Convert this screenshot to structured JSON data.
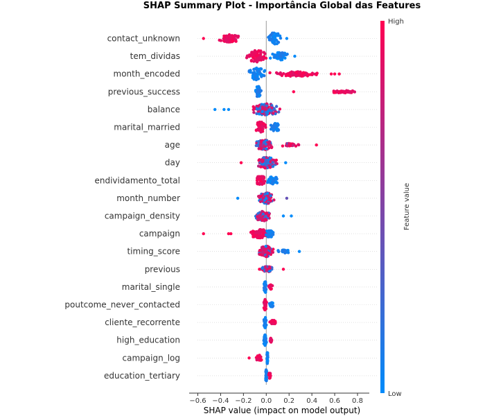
{
  "chart_data": {
    "type": "scatter",
    "subtype": "shap-beeswarm",
    "title": "SHAP Summary Plot - Importância Global das Features",
    "xlabel": "SHAP value (impact on model output)",
    "xlim": [
      -0.6,
      0.9
    ],
    "xticks": [
      -0.6,
      -0.4,
      -0.2,
      0.0,
      0.2,
      0.4,
      0.6,
      0.8
    ],
    "xtick_labels": [
      "−0.6",
      "−0.4",
      "−0.2",
      "0.0",
      "0.2",
      "0.4",
      "0.6",
      "0.8"
    ],
    "colorbar": {
      "title": "Feature value",
      "high_label": "High",
      "low_label": "Low",
      "low_color": "#008bfb",
      "high_color": "#ff0052"
    },
    "features": [
      {
        "name": "contact_unknown",
        "clusters": [
          {
            "center": -0.32,
            "spread": 0.1,
            "count": 70,
            "tone": 1,
            "height": 0.5
          },
          {
            "center": 0.07,
            "spread": 0.08,
            "count": 50,
            "tone": 0,
            "height": 0.75
          }
        ],
        "outliers": [
          {
            "x": -0.55,
            "tone": 1
          },
          {
            "x": 0.18,
            "tone": 0
          }
        ]
      },
      {
        "name": "tem_dividas",
        "clusters": [
          {
            "center": -0.08,
            "spread": 0.11,
            "count": 70,
            "tone": 1,
            "height": 0.8
          },
          {
            "center": 0.12,
            "spread": 0.1,
            "count": 55,
            "tone": 0,
            "height": 0.5
          }
        ],
        "outliers": [
          {
            "x": 0.25,
            "tone": 0
          }
        ]
      },
      {
        "name": "month_encoded",
        "clusters": [
          {
            "center": -0.08,
            "spread": 0.08,
            "count": 55,
            "tone": 0,
            "height": 0.8
          },
          {
            "center": 0.25,
            "spread": 0.25,
            "count": 75,
            "tone": 1,
            "height": 0.3
          }
        ],
        "outliers": [
          {
            "x": 0.57,
            "tone": 1
          },
          {
            "x": 0.6,
            "tone": 1
          },
          {
            "x": 0.64,
            "tone": 1
          }
        ]
      },
      {
        "name": "previous_success",
        "clusters": [
          {
            "center": -0.07,
            "spread": 0.03,
            "count": 45,
            "tone": 0,
            "height": 0.75
          },
          {
            "center": 0.68,
            "spread": 0.16,
            "count": 40,
            "tone": 1,
            "height": 0.15
          }
        ],
        "outliers": [
          {
            "x": 0.24,
            "tone": 1
          }
        ]
      },
      {
        "name": "balance",
        "clusters": [
          {
            "center": 0.0,
            "spread": 0.14,
            "count": 130,
            "tone": 0.5,
            "height": 0.75
          }
        ],
        "outliers": [
          {
            "x": -0.45,
            "tone": 0
          },
          {
            "x": -0.37,
            "tone": 0
          },
          {
            "x": -0.33,
            "tone": 0
          }
        ]
      },
      {
        "name": "marital_married",
        "clusters": [
          {
            "center": -0.05,
            "spread": 0.06,
            "count": 55,
            "tone": 1,
            "height": 0.7
          },
          {
            "center": 0.08,
            "spread": 0.06,
            "count": 40,
            "tone": 0,
            "height": 0.5
          }
        ],
        "outliers": []
      },
      {
        "name": "age",
        "clusters": [
          {
            "center": -0.02,
            "spread": 0.09,
            "count": 85,
            "tone": 0.6,
            "height": 0.65
          },
          {
            "center": 0.2,
            "spread": 0.12,
            "count": 25,
            "tone": 0.8,
            "height": 0.2
          }
        ],
        "outliers": [
          {
            "x": 0.44,
            "tone": 1
          }
        ]
      },
      {
        "name": "day",
        "clusters": [
          {
            "center": 0.0,
            "spread": 0.11,
            "count": 110,
            "tone": 0.55,
            "height": 0.7
          }
        ],
        "outliers": [
          {
            "x": 0.17,
            "tone": 0
          },
          {
            "x": -0.22,
            "tone": 1
          }
        ]
      },
      {
        "name": "endividamento_total",
        "clusters": [
          {
            "center": -0.05,
            "spread": 0.06,
            "count": 50,
            "tone": 1,
            "height": 0.6
          },
          {
            "center": 0.06,
            "spread": 0.06,
            "count": 40,
            "tone": 0,
            "height": 0.5
          }
        ],
        "outliers": []
      },
      {
        "name": "month_number",
        "clusters": [
          {
            "center": 0.0,
            "spread": 0.09,
            "count": 90,
            "tone": 0.5,
            "height": 0.7
          }
        ],
        "outliers": [
          {
            "x": -0.25,
            "tone": 0
          },
          {
            "x": 0.18,
            "tone": 0.4
          }
        ]
      },
      {
        "name": "campaign_density",
        "clusters": [
          {
            "center": -0.03,
            "spread": 0.08,
            "count": 85,
            "tone": 0.7,
            "height": 0.7
          }
        ],
        "outliers": [
          {
            "x": 0.15,
            "tone": 0
          },
          {
            "x": 0.22,
            "tone": 0
          }
        ]
      },
      {
        "name": "campaign",
        "clusters": [
          {
            "center": -0.05,
            "spread": 0.12,
            "count": 75,
            "tone": 1,
            "height": 0.55
          },
          {
            "center": 0.03,
            "spread": 0.04,
            "count": 30,
            "tone": 0,
            "height": 0.5
          }
        ],
        "outliers": [
          {
            "x": -0.55,
            "tone": 1
          },
          {
            "x": -0.33,
            "tone": 1
          },
          {
            "x": -0.31,
            "tone": 1
          }
        ]
      },
      {
        "name": "timing_score",
        "clusters": [
          {
            "center": 0.0,
            "spread": 0.08,
            "count": 90,
            "tone": 0.8,
            "height": 0.7
          },
          {
            "center": 0.16,
            "spread": 0.08,
            "count": 20,
            "tone": 0,
            "height": 0.2
          }
        ],
        "outliers": [
          {
            "x": 0.29,
            "tone": 0
          }
        ]
      },
      {
        "name": "previous",
        "clusters": [
          {
            "center": 0.01,
            "spread": 0.07,
            "count": 55,
            "tone": 0.6,
            "height": 0.35
          }
        ],
        "outliers": [
          {
            "x": -0.06,
            "tone": 1
          },
          {
            "x": 0.15,
            "tone": 1
          }
        ]
      },
      {
        "name": "marital_single",
        "clusters": [
          {
            "center": -0.01,
            "spread": 0.015,
            "count": 45,
            "tone": 0,
            "height": 0.75
          },
          {
            "center": 0.04,
            "spread": 0.02,
            "count": 15,
            "tone": 1,
            "height": 0.3
          }
        ],
        "outliers": []
      },
      {
        "name": "poutcome_never_contacted",
        "clusters": [
          {
            "center": -0.01,
            "spread": 0.015,
            "count": 45,
            "tone": 1,
            "height": 0.7
          },
          {
            "center": 0.05,
            "spread": 0.03,
            "count": 15,
            "tone": 0,
            "height": 0.3
          }
        ],
        "outliers": []
      },
      {
        "name": "cliente_recorrente",
        "clusters": [
          {
            "center": -0.01,
            "spread": 0.015,
            "count": 45,
            "tone": 0,
            "height": 0.7
          },
          {
            "center": 0.06,
            "spread": 0.04,
            "count": 20,
            "tone": 1,
            "height": 0.3
          }
        ],
        "outliers": []
      },
      {
        "name": "high_education",
        "clusters": [
          {
            "center": -0.01,
            "spread": 0.015,
            "count": 45,
            "tone": 0,
            "height": 0.7
          },
          {
            "center": 0.04,
            "spread": 0.02,
            "count": 15,
            "tone": 1,
            "height": 0.3
          }
        ],
        "outliers": []
      },
      {
        "name": "campaign_log",
        "clusters": [
          {
            "center": -0.06,
            "spread": 0.04,
            "count": 30,
            "tone": 1,
            "height": 0.4
          },
          {
            "center": 0.01,
            "spread": 0.005,
            "count": 35,
            "tone": 0,
            "height": 0.8
          }
        ],
        "outliers": [
          {
            "x": -0.15,
            "tone": 1
          }
        ]
      },
      {
        "name": "education_tertiary",
        "clusters": [
          {
            "center": 0.0,
            "spread": 0.008,
            "count": 40,
            "tone": 0,
            "height": 0.8
          },
          {
            "center": 0.03,
            "spread": 0.012,
            "count": 12,
            "tone": 1,
            "height": 0.4
          }
        ],
        "outliers": []
      }
    ]
  }
}
